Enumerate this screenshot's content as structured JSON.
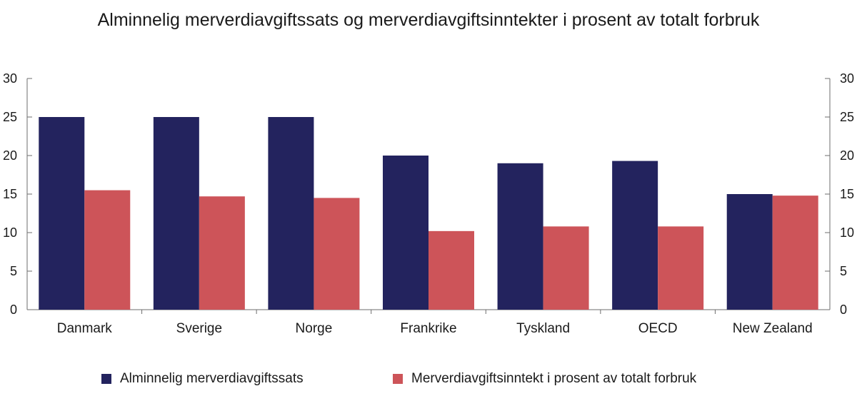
{
  "chart_data": {
    "type": "bar",
    "title": "Alminnelig merverdiavgiftssats og merverdiavgiftsinntekter i prosent av totalt forbruk",
    "categories": [
      "Danmark",
      "Sverige",
      "Norge",
      "Frankrike",
      "Tyskland",
      "OECD",
      "New Zealand"
    ],
    "series": [
      {
        "name": "Alminnelig merverdiavgiftssats",
        "color": "#23235e",
        "values": [
          25,
          25,
          25,
          20,
          19,
          19.3,
          15
        ]
      },
      {
        "name": "Merverdiavgiftsinntekt i prosent av totalt forbruk",
        "color": "#cd5459",
        "values": [
          15.5,
          14.7,
          14.5,
          10.2,
          10.8,
          10.8,
          14.8
        ]
      }
    ],
    "ylim": [
      0,
      30
    ],
    "yticks": [
      0,
      5,
      10,
      15,
      20,
      25,
      30
    ],
    "secondary_yticks": [
      0,
      5,
      10,
      15,
      20,
      25,
      30
    ],
    "grid": false,
    "legend_position": "bottom"
  }
}
